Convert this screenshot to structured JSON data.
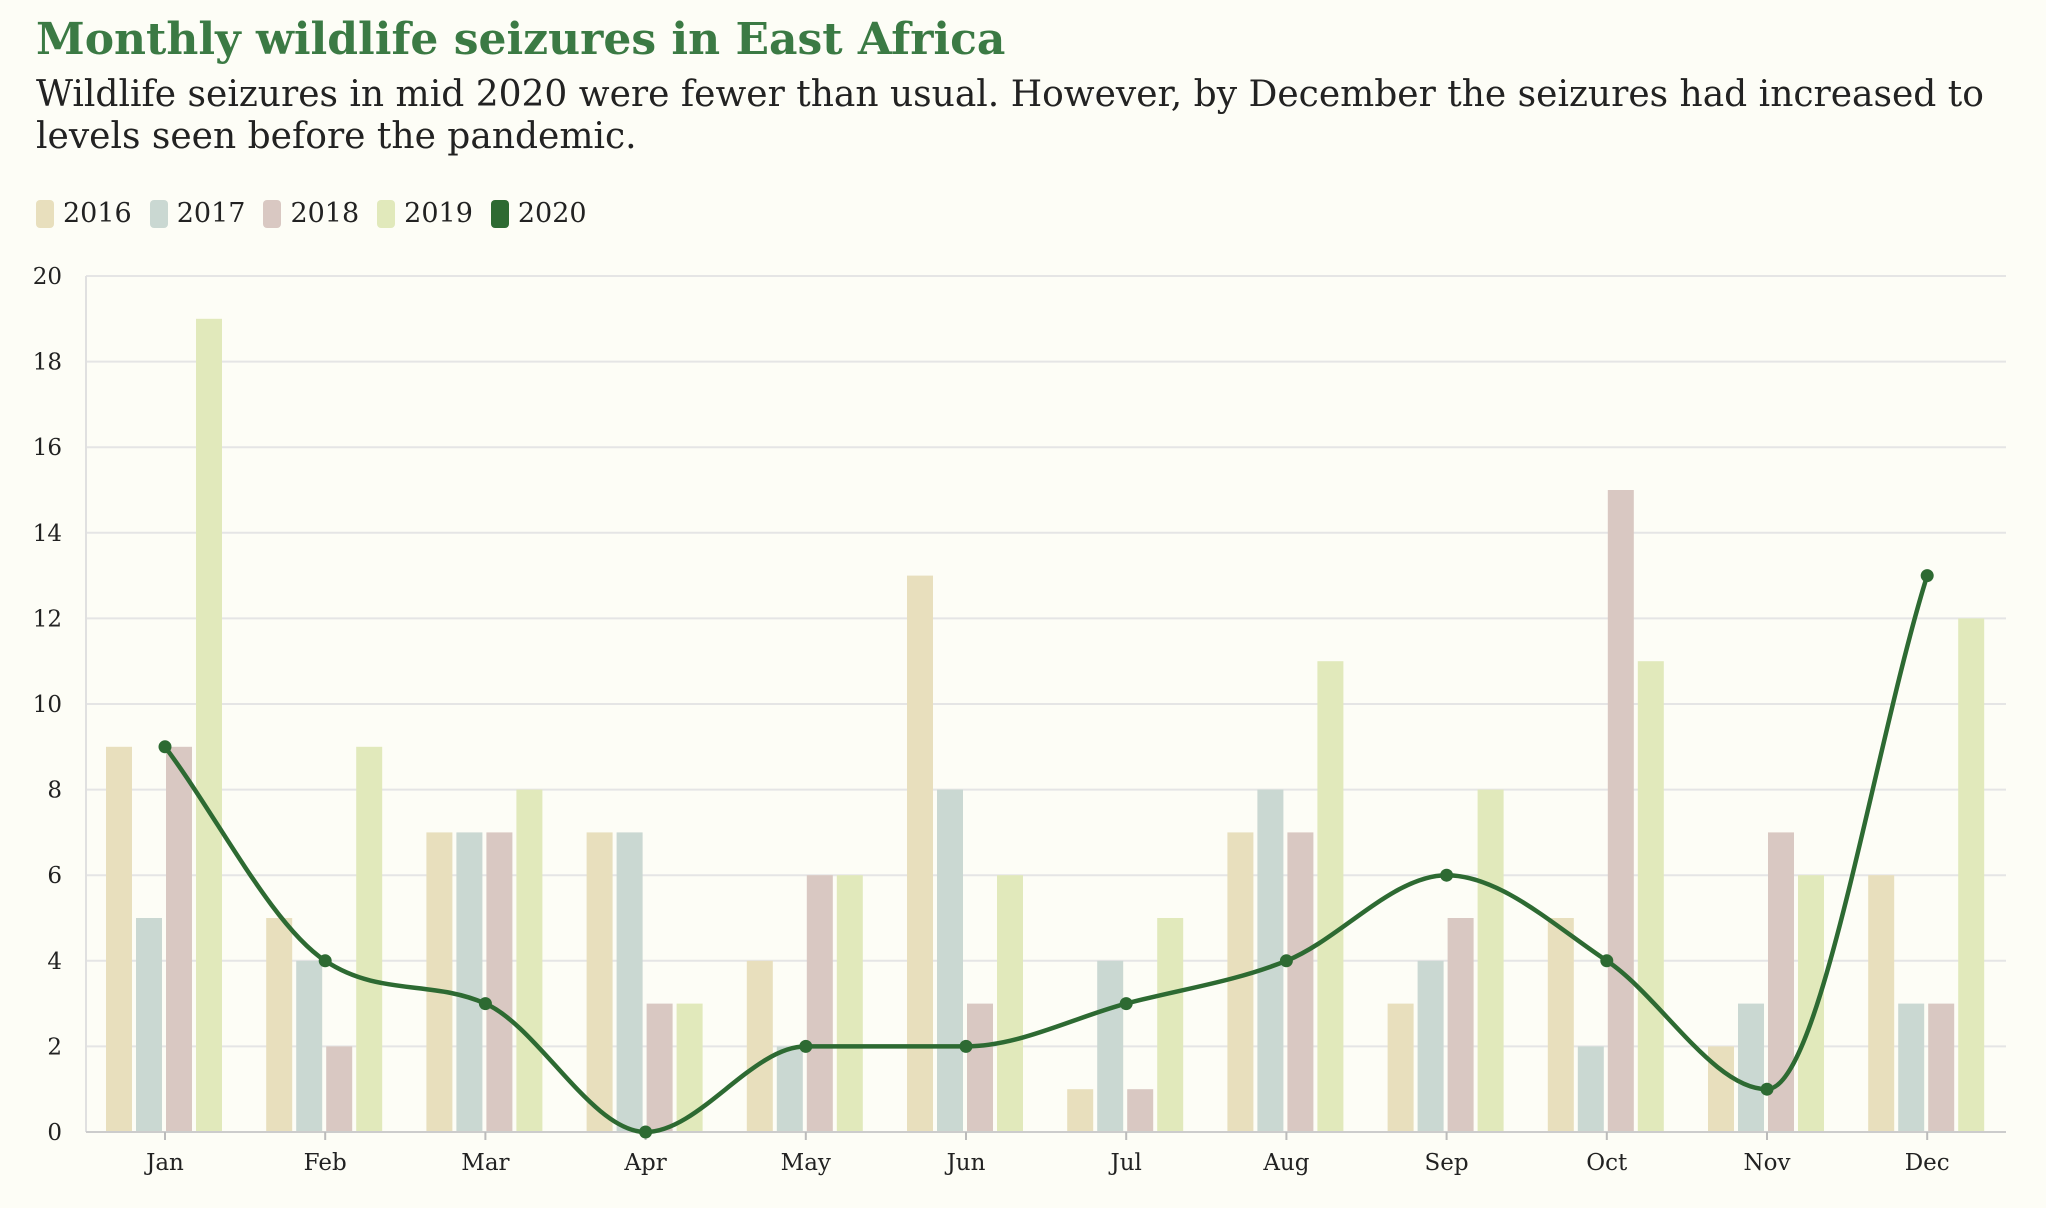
{
  "header": {
    "title": "Monthly wildlife seizures in East Africa",
    "subtitle": "Wildlife seizures in mid 2020 were fewer than usual. However, by December the seizures had increased to levels seen before the pandemic."
  },
  "colors": {
    "2016": "#e8dfbd",
    "2017": "#cad8d2",
    "2018": "#d9c8c2",
    "2019": "#e1e9bb",
    "2020": "#2d6a32",
    "grid": "#e5e5e5"
  },
  "chart_data": {
    "type": "bar",
    "title": "Monthly wildlife seizures in East Africa",
    "subtitle": "Wildlife seizures in mid 2020 were fewer than usual. However, by December the seizures had increased to levels seen before the pandemic.",
    "xlabel": "",
    "ylabel": "",
    "ylim": [
      0,
      20
    ],
    "yticks": [
      0,
      2,
      4,
      6,
      8,
      10,
      12,
      14,
      16,
      18,
      20
    ],
    "grid": true,
    "legend_position": "top-left",
    "categories": [
      "Jan",
      "Feb",
      "Mar",
      "Apr",
      "May",
      "Jun",
      "Jul",
      "Aug",
      "Sep",
      "Oct",
      "Nov",
      "Dec"
    ],
    "series": [
      {
        "name": "2016",
        "type": "bar",
        "values": [
          9,
          5,
          7,
          7,
          4,
          13,
          1,
          7,
          3,
          5,
          2,
          6
        ]
      },
      {
        "name": "2017",
        "type": "bar",
        "values": [
          5,
          4,
          7,
          7,
          2,
          8,
          4,
          8,
          4,
          2,
          3,
          3
        ]
      },
      {
        "name": "2018",
        "type": "bar",
        "values": [
          9,
          2,
          7,
          3,
          6,
          3,
          1,
          7,
          5,
          15,
          7,
          3
        ]
      },
      {
        "name": "2019",
        "type": "bar",
        "values": [
          19,
          9,
          8,
          3,
          6,
          6,
          5,
          11,
          8,
          11,
          6,
          12
        ]
      },
      {
        "name": "2020",
        "type": "line",
        "values": [
          9,
          4,
          3,
          0,
          2,
          2,
          3,
          4,
          6,
          4,
          1,
          13
        ]
      }
    ]
  }
}
